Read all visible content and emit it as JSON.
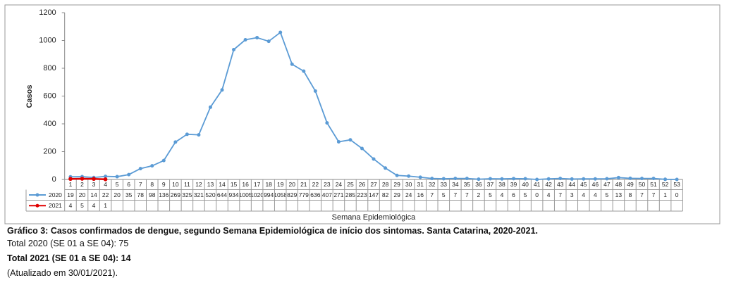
{
  "chart_data": {
    "type": "line",
    "y_label": "Casos",
    "x_label": "Semana Epidemiológica",
    "categories": [
      "1",
      "2",
      "3",
      "4",
      "5",
      "6",
      "7",
      "8",
      "9",
      "10",
      "11",
      "12",
      "13",
      "14",
      "15",
      "16",
      "17",
      "18",
      "19",
      "20",
      "21",
      "22",
      "23",
      "24",
      "25",
      "26",
      "27",
      "28",
      "29",
      "30",
      "31",
      "32",
      "33",
      "34",
      "35",
      "36",
      "37",
      "38",
      "39",
      "40",
      "41",
      "42",
      "43",
      "44",
      "45",
      "46",
      "47",
      "48",
      "49",
      "50",
      "51",
      "52",
      "53"
    ],
    "series": [
      {
        "name": "2020",
        "color": "#5b9bd5",
        "values": [
          19,
          20,
          14,
          22,
          20,
          35,
          78,
          98,
          136,
          269,
          325,
          321,
          520,
          644,
          934,
          1005,
          1020,
          994,
          1058,
          829,
          779,
          636,
          407,
          271,
          285,
          223,
          147,
          82,
          29,
          24,
          16,
          7,
          5,
          7,
          7,
          2,
          5,
          4,
          6,
          5,
          0,
          4,
          7,
          3,
          4,
          4,
          5,
          13,
          8,
          7,
          7,
          1,
          0
        ]
      },
      {
        "name": "2021",
        "color": "#e00000",
        "values": [
          4,
          5,
          4,
          1,
          null,
          null,
          null,
          null,
          null,
          null,
          null,
          null,
          null,
          null,
          null,
          null,
          null,
          null,
          null,
          null,
          null,
          null,
          null,
          null,
          null,
          null,
          null,
          null,
          null,
          null,
          null,
          null,
          null,
          null,
          null,
          null,
          null,
          null,
          null,
          null,
          null,
          null,
          null,
          null,
          null,
          null,
          null,
          null,
          null,
          null,
          null,
          null,
          null
        ]
      }
    ],
    "ylim": [
      0,
      1200
    ],
    "yticks": [
      0,
      200,
      400,
      600,
      800,
      1000,
      1200
    ],
    "grid": false
  },
  "caption": "Gráfico 3: Casos confirmados de dengue, segundo Semana Epidemiológica de início dos sintomas. Santa Catarina, 2020-2021.",
  "notes": [
    "Total 2020 (SE 01 a SE 04): 75",
    "Total 2021 (SE 01 a SE 04): 14",
    "(Atualizado em 30/01/2021)."
  ]
}
